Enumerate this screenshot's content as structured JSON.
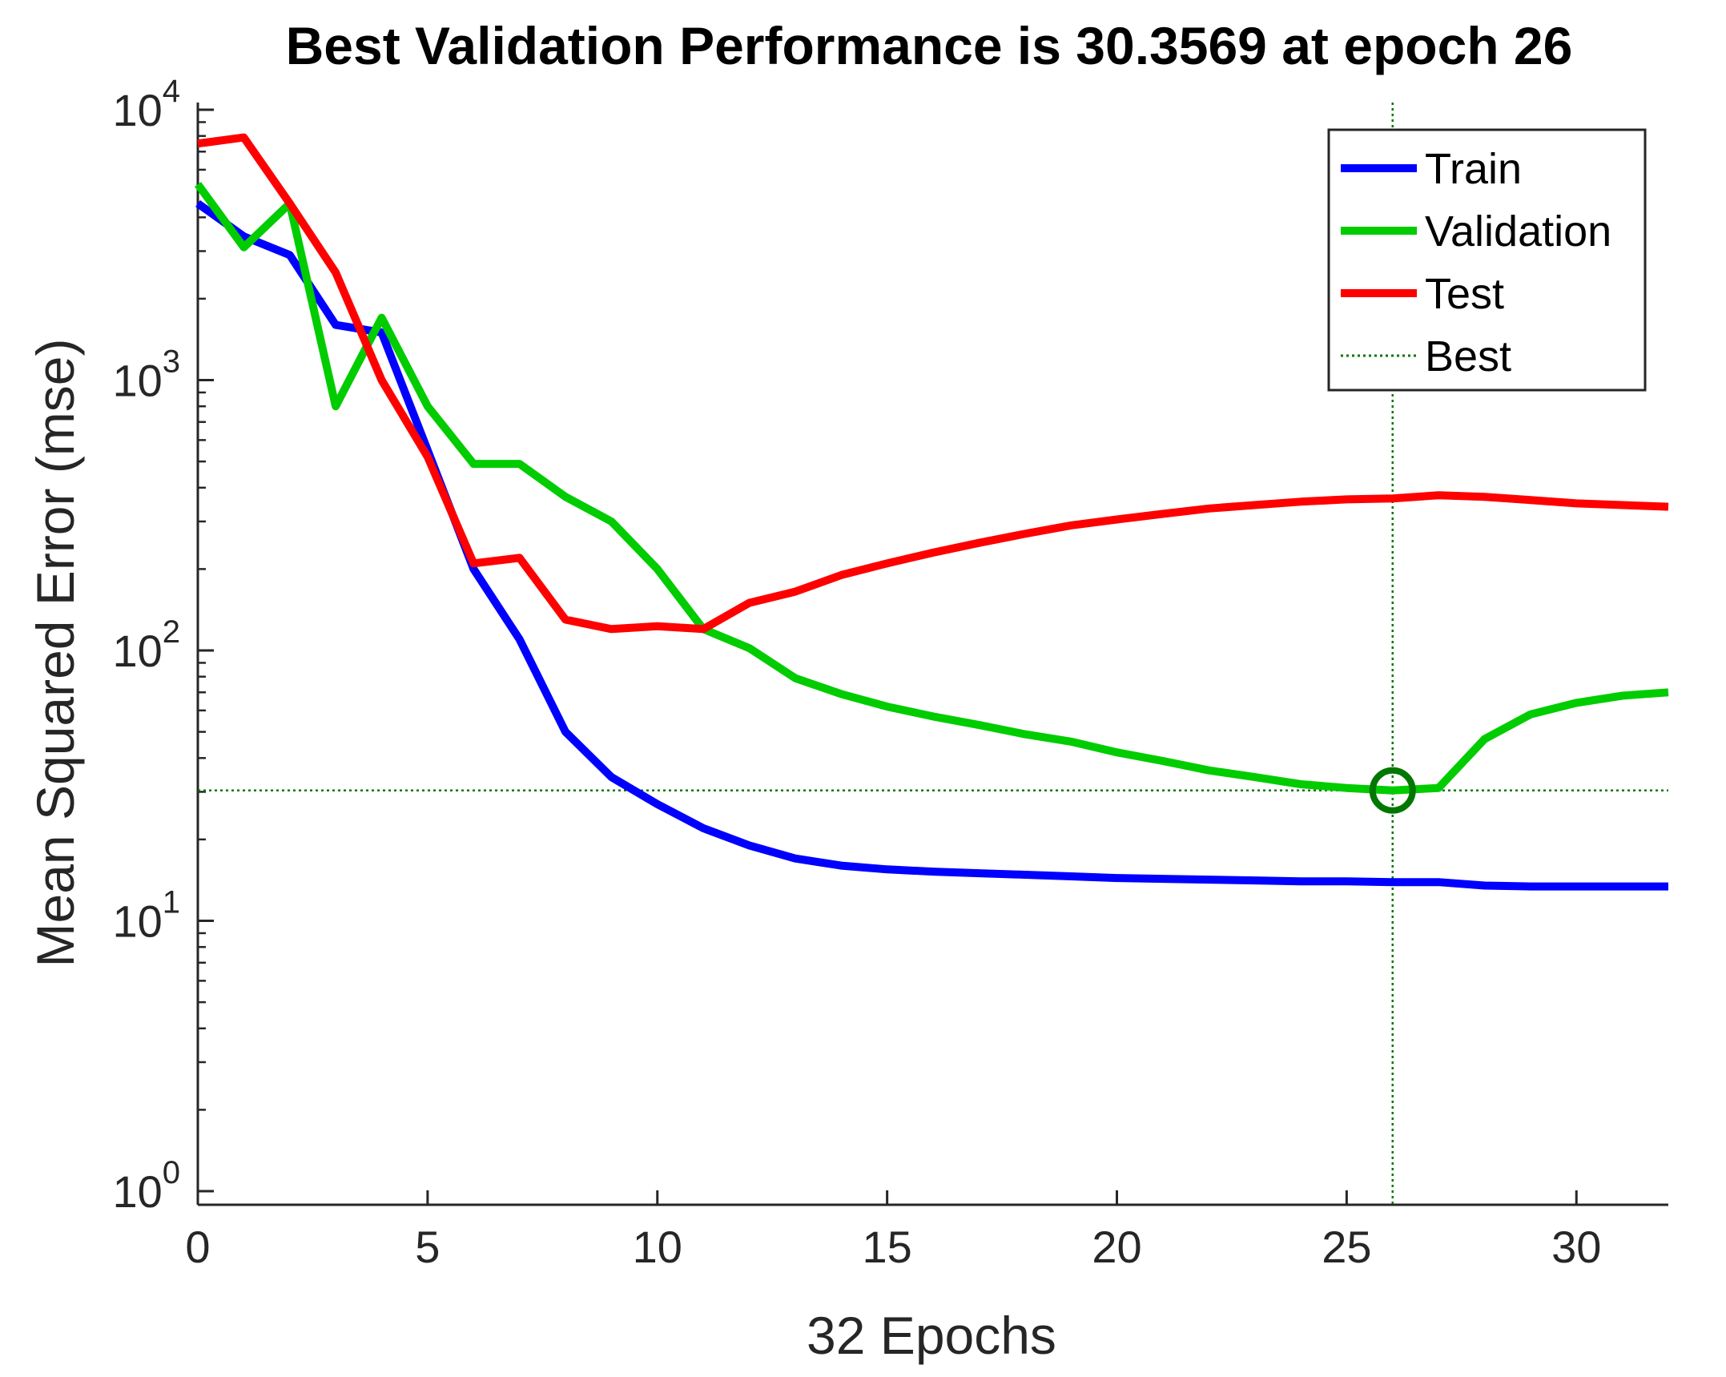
{
  "chart_data": {
    "type": "line",
    "title": "Best Validation Performance is 30.3569 at epoch 26",
    "xlabel": "32 Epochs",
    "ylabel": "Mean Squared Error  (mse)",
    "yscale": "log",
    "xlim": [
      0,
      32
    ],
    "ylim": [
      1,
      10000
    ],
    "xticks": [
      0,
      5,
      10,
      15,
      20,
      25,
      30
    ],
    "xtick_labels": [
      "0",
      "5",
      "10",
      "15",
      "20",
      "25",
      "30"
    ],
    "yticks": [
      {
        "value": 1,
        "base": "10",
        "exp": "0"
      },
      {
        "value": 10,
        "base": "10",
        "exp": "1"
      },
      {
        "value": 100,
        "base": "10",
        "exp": "2"
      },
      {
        "value": 1000,
        "base": "10",
        "exp": "3"
      },
      {
        "value": 10000,
        "base": "10",
        "exp": "4"
      }
    ],
    "legend_position": "top-right",
    "x": [
      0,
      1,
      2,
      3,
      4,
      5,
      6,
      7,
      8,
      9,
      10,
      11,
      12,
      13,
      14,
      15,
      16,
      17,
      18,
      19,
      20,
      21,
      22,
      23,
      24,
      25,
      26,
      27,
      28,
      29,
      30,
      31,
      32
    ],
    "series": [
      {
        "name": "Train",
        "color": "#0000ff",
        "values": [
          4500,
          3400,
          2900,
          1600,
          1500,
          550,
          200,
          110,
          50,
          34,
          27,
          22,
          19,
          17,
          16,
          15.5,
          15.2,
          15,
          14.8,
          14.6,
          14.4,
          14.3,
          14.2,
          14.1,
          14,
          14,
          13.9,
          13.9,
          13.5,
          13.4,
          13.4,
          13.4,
          13.4
        ]
      },
      {
        "name": "Validation",
        "color": "#00cc00",
        "values": [
          5300,
          3100,
          4500,
          800,
          1700,
          800,
          490,
          490,
          370,
          300,
          200,
          120,
          102,
          79,
          69,
          62,
          57,
          53,
          49,
          46,
          42,
          39,
          36,
          34,
          32,
          31,
          30.3569,
          31,
          47,
          58,
          64,
          68,
          70
        ]
      },
      {
        "name": "Test",
        "color": "#ff0000",
        "values": [
          7500,
          7900,
          4500,
          2500,
          1000,
          520,
          210,
          220,
          130,
          120,
          123,
          120,
          150,
          165,
          190,
          210,
          230,
          250,
          270,
          290,
          305,
          320,
          335,
          345,
          355,
          362,
          365,
          375,
          370,
          360,
          350,
          345,
          340
        ]
      }
    ],
    "best": {
      "name": "Best",
      "color": "#007700",
      "epoch": 26,
      "value": 30.3569
    }
  }
}
